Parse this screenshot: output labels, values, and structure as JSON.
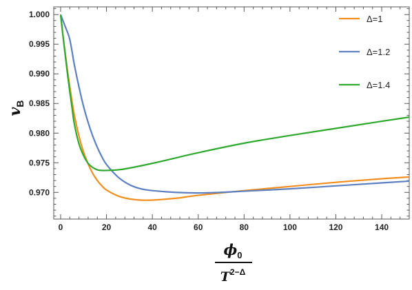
{
  "chart_data": {
    "type": "line",
    "title": "",
    "xlabel": {
      "numerator_symbol": "ϕ",
      "numerator_subscript": "0",
      "denominator_symbol": "T",
      "denominator_superscript": "2−Δ"
    },
    "ylabel": {
      "symbol": "v",
      "subscript": "B"
    },
    "xlim": [
      -3,
      152
    ],
    "ylim": [
      0.9655,
      1.0013
    ],
    "xticks": [
      0,
      20,
      40,
      60,
      80,
      100,
      120,
      140
    ],
    "xtick_labels": [
      "0",
      "20",
      "40",
      "60",
      "80",
      "100",
      "120",
      "140"
    ],
    "yticks": [
      0.97,
      0.975,
      0.98,
      0.985,
      0.99,
      0.995,
      1.0
    ],
    "ytick_labels": [
      "0.970",
      "0.975",
      "0.980",
      "0.985",
      "0.990",
      "0.995",
      "1.000"
    ],
    "grid": false,
    "legend_position": "top-right",
    "series": [
      {
        "name": "Δ=1",
        "color": "#f28e1e",
        "x": [
          0,
          1,
          2,
          3,
          4,
          5,
          6,
          8,
          10,
          12,
          14,
          16,
          18,
          20,
          25,
          30,
          35,
          40,
          50,
          60,
          80,
          100,
          120,
          140,
          152
        ],
        "y": [
          1.0,
          0.9965,
          0.9935,
          0.9905,
          0.9878,
          0.9853,
          0.983,
          0.9795,
          0.9768,
          0.9748,
          0.9732,
          0.972,
          0.9711,
          0.9704,
          0.9694,
          0.9689,
          0.9687,
          0.9687,
          0.969,
          0.9695,
          0.9703,
          0.971,
          0.9717,
          0.9723,
          0.9726
        ]
      },
      {
        "name": "Δ=1.2",
        "color": "#5b7fbf",
        "x": [
          0,
          2,
          4,
          6,
          8,
          10,
          12,
          14,
          16,
          18,
          20,
          25,
          30,
          35,
          40,
          50,
          60,
          70,
          80,
          100,
          120,
          140,
          152
        ],
        "y": [
          1.0,
          0.998,
          0.9958,
          0.9915,
          0.9878,
          0.9845,
          0.9818,
          0.9795,
          0.9776,
          0.976,
          0.9747,
          0.9726,
          0.9713,
          0.9706,
          0.9703,
          0.97,
          0.9699,
          0.97,
          0.9702,
          0.9706,
          0.9711,
          0.9716,
          0.9719
        ]
      },
      {
        "name": "Δ=1.4",
        "color": "#2ca82c",
        "x": [
          0,
          1,
          2,
          3,
          4,
          5,
          6,
          8,
          10,
          12,
          14,
          16,
          18,
          20,
          25,
          30,
          40,
          50,
          60,
          80,
          100,
          120,
          140,
          152
        ],
        "y": [
          1.0,
          0.9965,
          0.9932,
          0.99,
          0.987,
          0.9842,
          0.9815,
          0.9782,
          0.9762,
          0.9749,
          0.9742,
          0.9738,
          0.9737,
          0.9737,
          0.9738,
          0.9741,
          0.9749,
          0.9758,
          0.9767,
          0.9783,
          0.9796,
          0.9808,
          0.982,
          0.9827
        ]
      }
    ]
  }
}
